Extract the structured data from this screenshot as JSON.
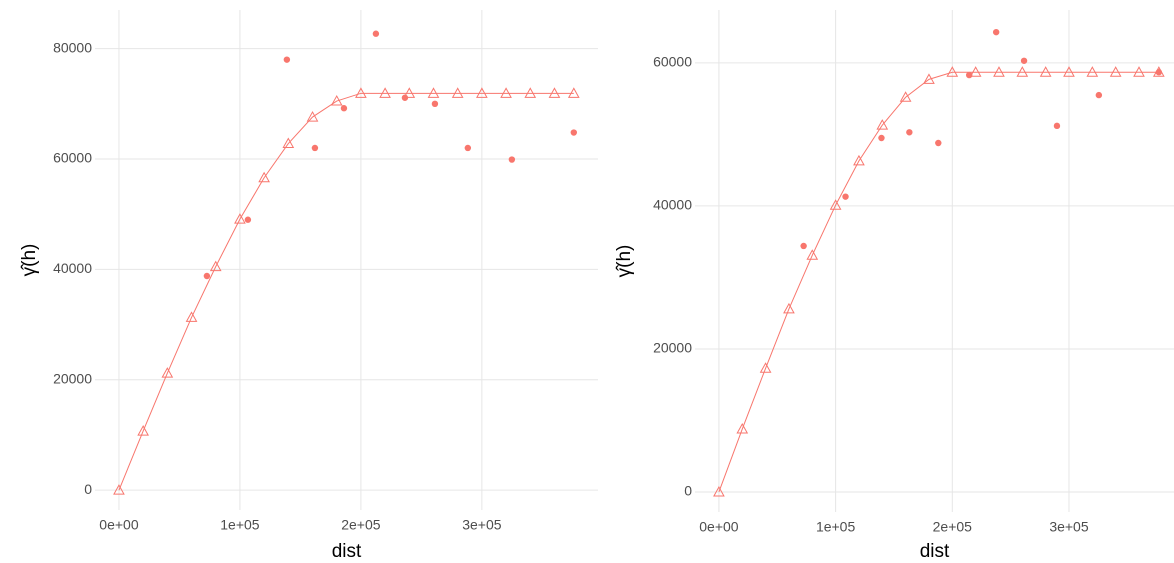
{
  "chart_data": [
    {
      "type": "scatter",
      "xlabel": "dist",
      "ylabel": "γ̂(h)",
      "xlim": [
        -19800,
        396000
      ],
      "ylim": [
        -3600,
        87000
      ],
      "xticks": [
        {
          "value": 0,
          "label": "0e+00"
        },
        {
          "value": 100000,
          "label": "1e+05"
        },
        {
          "value": 200000,
          "label": "2e+05"
        },
        {
          "value": 300000,
          "label": "3e+05"
        }
      ],
      "yticks": [
        0,
        20000,
        40000,
        60000,
        80000
      ],
      "grid": true,
      "points": {
        "color": "#F8766D",
        "x": [
          72700,
          106600,
          138800,
          162000,
          186000,
          212400,
          236400,
          261200,
          288400,
          324800,
          376000
        ],
        "values": [
          38800,
          49000,
          78000,
          62000,
          69200,
          82700,
          71100,
          70000,
          62000,
          59900,
          64800
        ]
      },
      "model": {
        "color": "#F8766D",
        "x": [
          0,
          20000,
          40000,
          60000,
          80000,
          100000,
          120000,
          140000,
          160000,
          180000,
          200000,
          220000,
          240000,
          260000,
          280000,
          300000,
          320000,
          340000,
          360000,
          376000
        ],
        "values": [
          0,
          10700,
          21200,
          31300,
          40500,
          49100,
          56600,
          62800,
          67600,
          70500,
          71900,
          71900,
          71900,
          71900,
          71900,
          71900,
          71900,
          71900,
          71900,
          71900
        ]
      }
    },
    {
      "type": "scatter",
      "xlabel": "dist",
      "ylabel": "γ̂(h)",
      "xlim": [
        -20500,
        390000
      ],
      "ylim": [
        -2800,
        67400
      ],
      "xticks": [
        {
          "value": 0,
          "label": "0e+00"
        },
        {
          "value": 100000,
          "label": "1e+05"
        },
        {
          "value": 200000,
          "label": "2e+05"
        },
        {
          "value": 300000,
          "label": "3e+05"
        }
      ],
      "yticks": [
        0,
        20000,
        40000,
        60000
      ],
      "grid": true,
      "points": {
        "color": "#F8766D",
        "x": [
          72600,
          108500,
          139300,
          163200,
          188000,
          214500,
          237600,
          261500,
          289700,
          325600,
          377000
        ],
        "values": [
          34400,
          41300,
          49500,
          50300,
          48800,
          58300,
          64300,
          60300,
          51200,
          55500,
          58700
        ]
      },
      "model": {
        "color": "#F8766D",
        "x": [
          0,
          20000,
          40000,
          60000,
          80000,
          100000,
          120000,
          140000,
          160000,
          180000,
          200000,
          220000,
          240000,
          260000,
          280000,
          300000,
          320000,
          340000,
          360000,
          377000
        ],
        "values": [
          0,
          8800,
          17300,
          25600,
          33100,
          40100,
          46300,
          51300,
          55200,
          57700,
          58700,
          58700,
          58700,
          58700,
          58700,
          58700,
          58700,
          58700,
          58700,
          58700
        ]
      }
    }
  ]
}
